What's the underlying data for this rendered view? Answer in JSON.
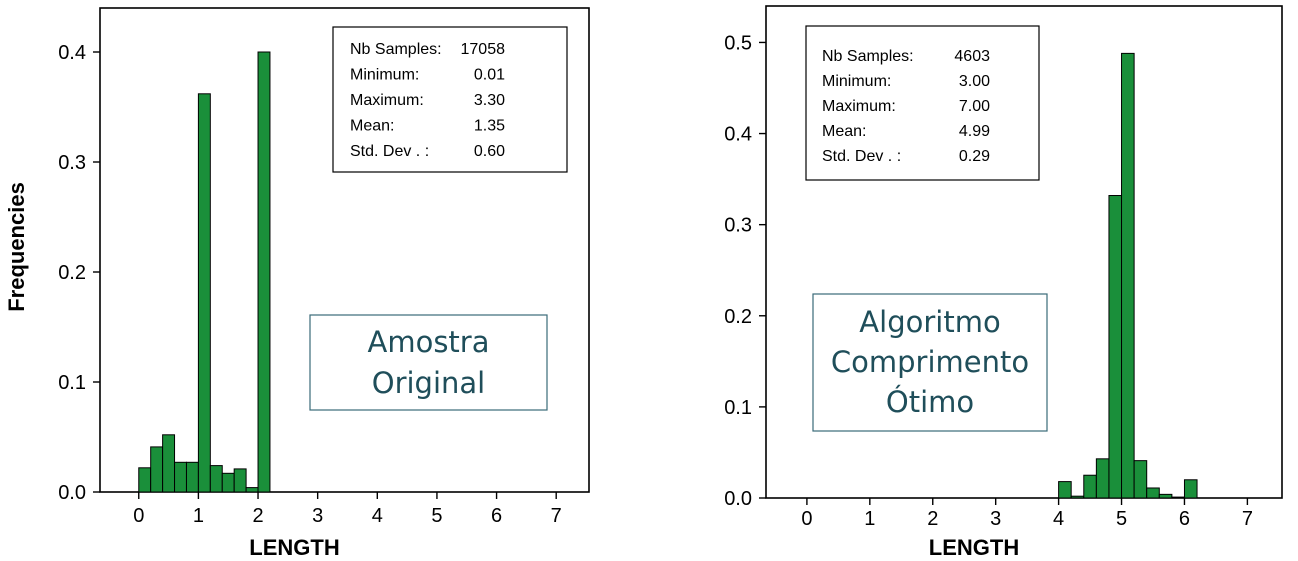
{
  "chart_data": [
    {
      "type": "bar",
      "ylabel": "Frequencies",
      "xlabel": "LENGTH",
      "xlim": [
        -0.65,
        7.55
      ],
      "ylim": [
        0,
        0.44
      ],
      "x_ticks": [
        "0",
        "1",
        "2",
        "3",
        "4",
        "5",
        "6",
        "7"
      ],
      "y_ticks": [
        "0.0",
        "0.1",
        "0.2",
        "0.3",
        "0.4"
      ],
      "bin_width": 0.2,
      "bins": [
        {
          "x0": 0.0,
          "value": 0.022
        },
        {
          "x0": 0.2,
          "value": 0.041
        },
        {
          "x0": 0.4,
          "value": 0.052
        },
        {
          "x0": 0.6,
          "value": 0.027
        },
        {
          "x0": 0.8,
          "value": 0.027
        },
        {
          "x0": 1.0,
          "value": 0.362
        },
        {
          "x0": 1.2,
          "value": 0.024
        },
        {
          "x0": 1.4,
          "value": 0.017
        },
        {
          "x0": 1.6,
          "value": 0.021
        },
        {
          "x0": 1.8,
          "value": 0.004
        },
        {
          "x0": 2.0,
          "value": 0.4
        }
      ],
      "stats": [
        {
          "label": "Nb Samples:",
          "value": "17058"
        },
        {
          "label": "Minimum:",
          "value": "0.01"
        },
        {
          "label": "Maximum:",
          "value": "3.30"
        },
        {
          "label": "Mean:",
          "value": "1.35"
        },
        {
          "label": "Std.   Dev . :",
          "value": "0.60"
        }
      ],
      "overlay": [
        "Amostra",
        "Original"
      ],
      "bar_color": "#1a8f3a"
    },
    {
      "type": "bar",
      "ylabel": "",
      "xlabel": "LENGTH",
      "xlim": [
        -0.65,
        7.55
      ],
      "ylim": [
        0,
        0.54
      ],
      "x_ticks": [
        "0",
        "1",
        "2",
        "3",
        "4",
        "5",
        "6",
        "7"
      ],
      "y_ticks": [
        "0.0",
        "0.1",
        "0.2",
        "0.3",
        "0.4",
        "0.5"
      ],
      "bin_width": 0.2,
      "bins": [
        {
          "x0": 4.0,
          "value": 0.018
        },
        {
          "x0": 4.2,
          "value": 0.002
        },
        {
          "x0": 4.4,
          "value": 0.025
        },
        {
          "x0": 4.6,
          "value": 0.043
        },
        {
          "x0": 4.8,
          "value": 0.332
        },
        {
          "x0": 5.0,
          "value": 0.488
        },
        {
          "x0": 5.2,
          "value": 0.041
        },
        {
          "x0": 5.4,
          "value": 0.011
        },
        {
          "x0": 5.6,
          "value": 0.004
        },
        {
          "x0": 5.8,
          "value": 0.001
        },
        {
          "x0": 6.0,
          "value": 0.02
        }
      ],
      "stats": [
        {
          "label": "Nb Samples:",
          "value": "4603"
        },
        {
          "label": "Minimum:",
          "value": "3.00"
        },
        {
          "label": "Maximum:",
          "value": "7.00"
        },
        {
          "label": "Mean:",
          "value": "4.99"
        },
        {
          "label": "Std.   Dev . :",
          "value": "0.29"
        }
      ],
      "overlay": [
        "Algoritmo",
        "Comprimento",
        "Ótimo"
      ],
      "bar_color": "#1a8f3a"
    }
  ]
}
